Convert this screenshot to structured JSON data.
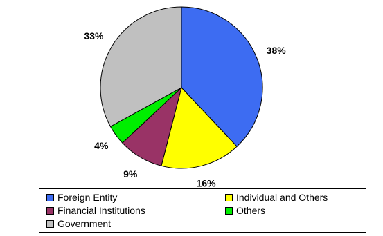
{
  "chart_data": {
    "type": "pie",
    "title": "",
    "slices": [
      {
        "label": "Foreign Entity",
        "value": 38,
        "display": "38%",
        "color": "#3D6CF2"
      },
      {
        "label": "Individual and Others",
        "value": 16,
        "display": "16%",
        "color": "#FFFF00"
      },
      {
        "label": "Financial Institutions",
        "value": 9,
        "display": "9%",
        "color": "#993366"
      },
      {
        "label": "Others",
        "value": 4,
        "display": "4%",
        "color": "#00EE00"
      },
      {
        "label": "Government",
        "value": 33,
        "display": "33%",
        "color": "#C0C0C0"
      }
    ],
    "start": "12 o'clock",
    "direction": "clockwise",
    "legend": {
      "position": "bottom"
    }
  }
}
